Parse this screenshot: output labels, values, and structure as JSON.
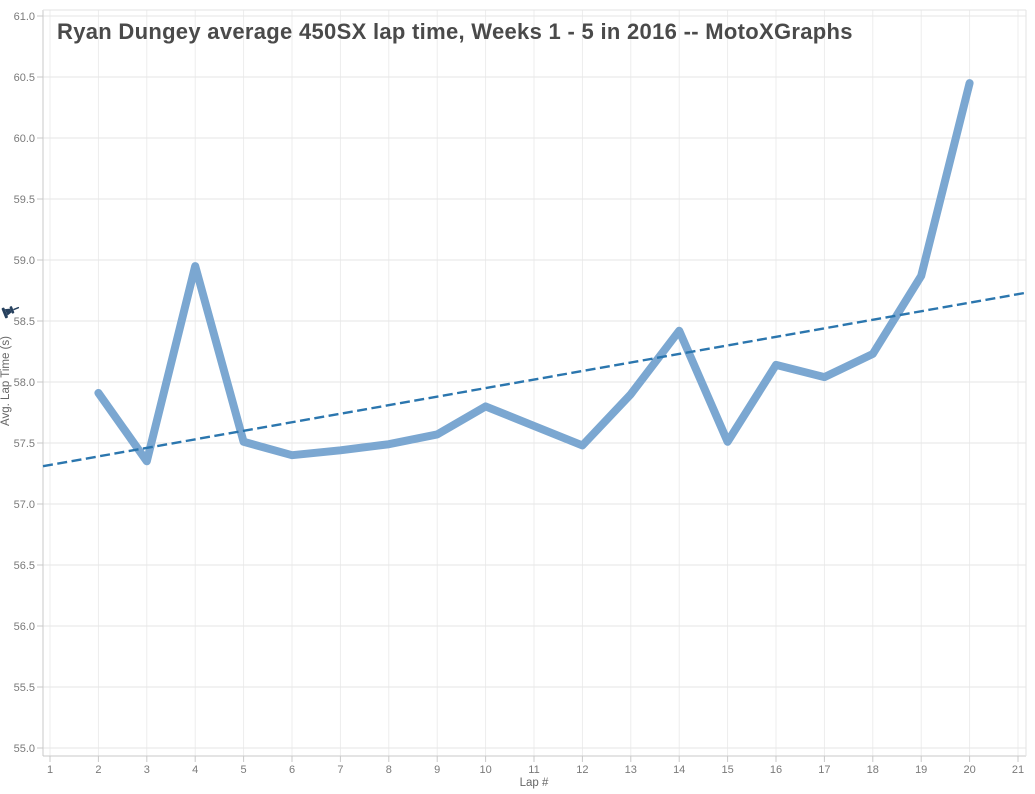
{
  "chart_data": {
    "type": "line",
    "title": "Ryan Dungey average 450SX lap time, Weeks 1 - 5 in 2016 -- MotoXGraphs",
    "xlabel": "Lap #",
    "ylabel": "Avg. Lap Time (s)",
    "xlim": [
      1,
      21
    ],
    "ylim": [
      55.0,
      61.0
    ],
    "x_ticks": [
      1,
      2,
      3,
      4,
      5,
      6,
      7,
      8,
      9,
      10,
      11,
      12,
      13,
      14,
      15,
      16,
      17,
      18,
      19,
      20,
      21
    ],
    "y_ticks": [
      55.0,
      55.5,
      56.0,
      56.5,
      57.0,
      57.5,
      58.0,
      58.5,
      59.0,
      59.5,
      60.0,
      60.5,
      61.0
    ],
    "grid": true,
    "legend": "none",
    "series": [
      {
        "name": "Avg. Lap Time",
        "x": [
          2,
          3,
          4,
          5,
          6,
          7,
          8,
          9,
          10,
          11,
          12,
          13,
          14,
          15,
          16,
          17,
          18,
          19,
          20
        ],
        "values": [
          57.91,
          57.35,
          58.95,
          57.51,
          57.4,
          57.44,
          57.49,
          57.57,
          57.8,
          57.64,
          57.48,
          57.9,
          58.42,
          57.51,
          58.14,
          58.04,
          58.23,
          58.87,
          60.45
        ]
      }
    ],
    "trendline": {
      "name": "linear trend",
      "x": [
        1,
        21
      ],
      "values": [
        57.32,
        58.72
      ],
      "style": "dashed"
    },
    "icons": {
      "axis_pin": "pushpin-icon"
    },
    "colors": {
      "series_line": "#7BA7D1",
      "trend_line": "#2B76AE",
      "grid_horizontal": "#e6e6e6",
      "grid_vertical": "#ededed",
      "axis_line": "#c9c9c9",
      "pane_border": "#e3e3e3",
      "tick_label": "#7a7a7a",
      "axis_title": "#666666",
      "title_text": "#4a4a4a",
      "pin_icon": "#27415e",
      "background": "#ffffff"
    }
  }
}
